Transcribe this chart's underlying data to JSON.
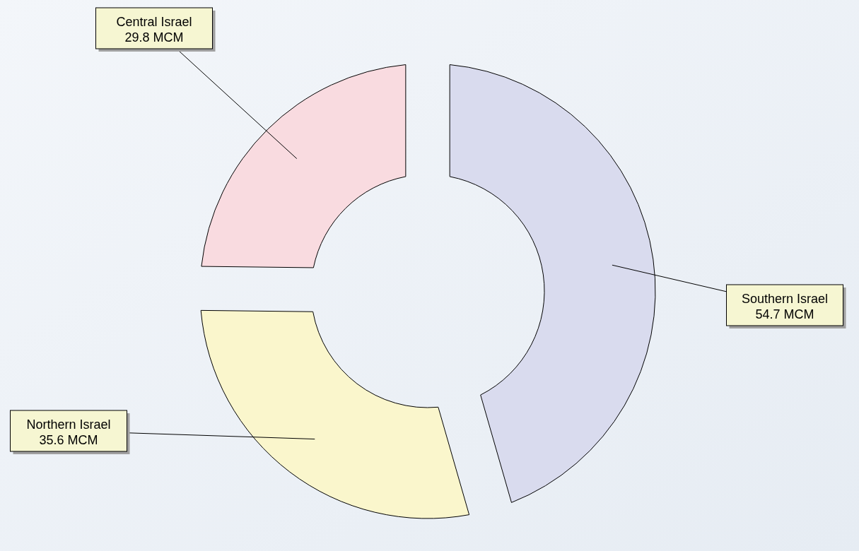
{
  "chart_data": {
    "type": "donut",
    "categories": [
      "Southern Israel",
      "Northern Israel",
      "Central Israel"
    ],
    "values": [
      54.7,
      35.6,
      29.8
    ],
    "colors": [
      "#d9dbee",
      "#faf6cc",
      "#f9dbe0"
    ],
    "value_labels": [
      "54.7 MCM",
      "35.6 MCM",
      "29.8 MCM"
    ],
    "legend": false
  }
}
